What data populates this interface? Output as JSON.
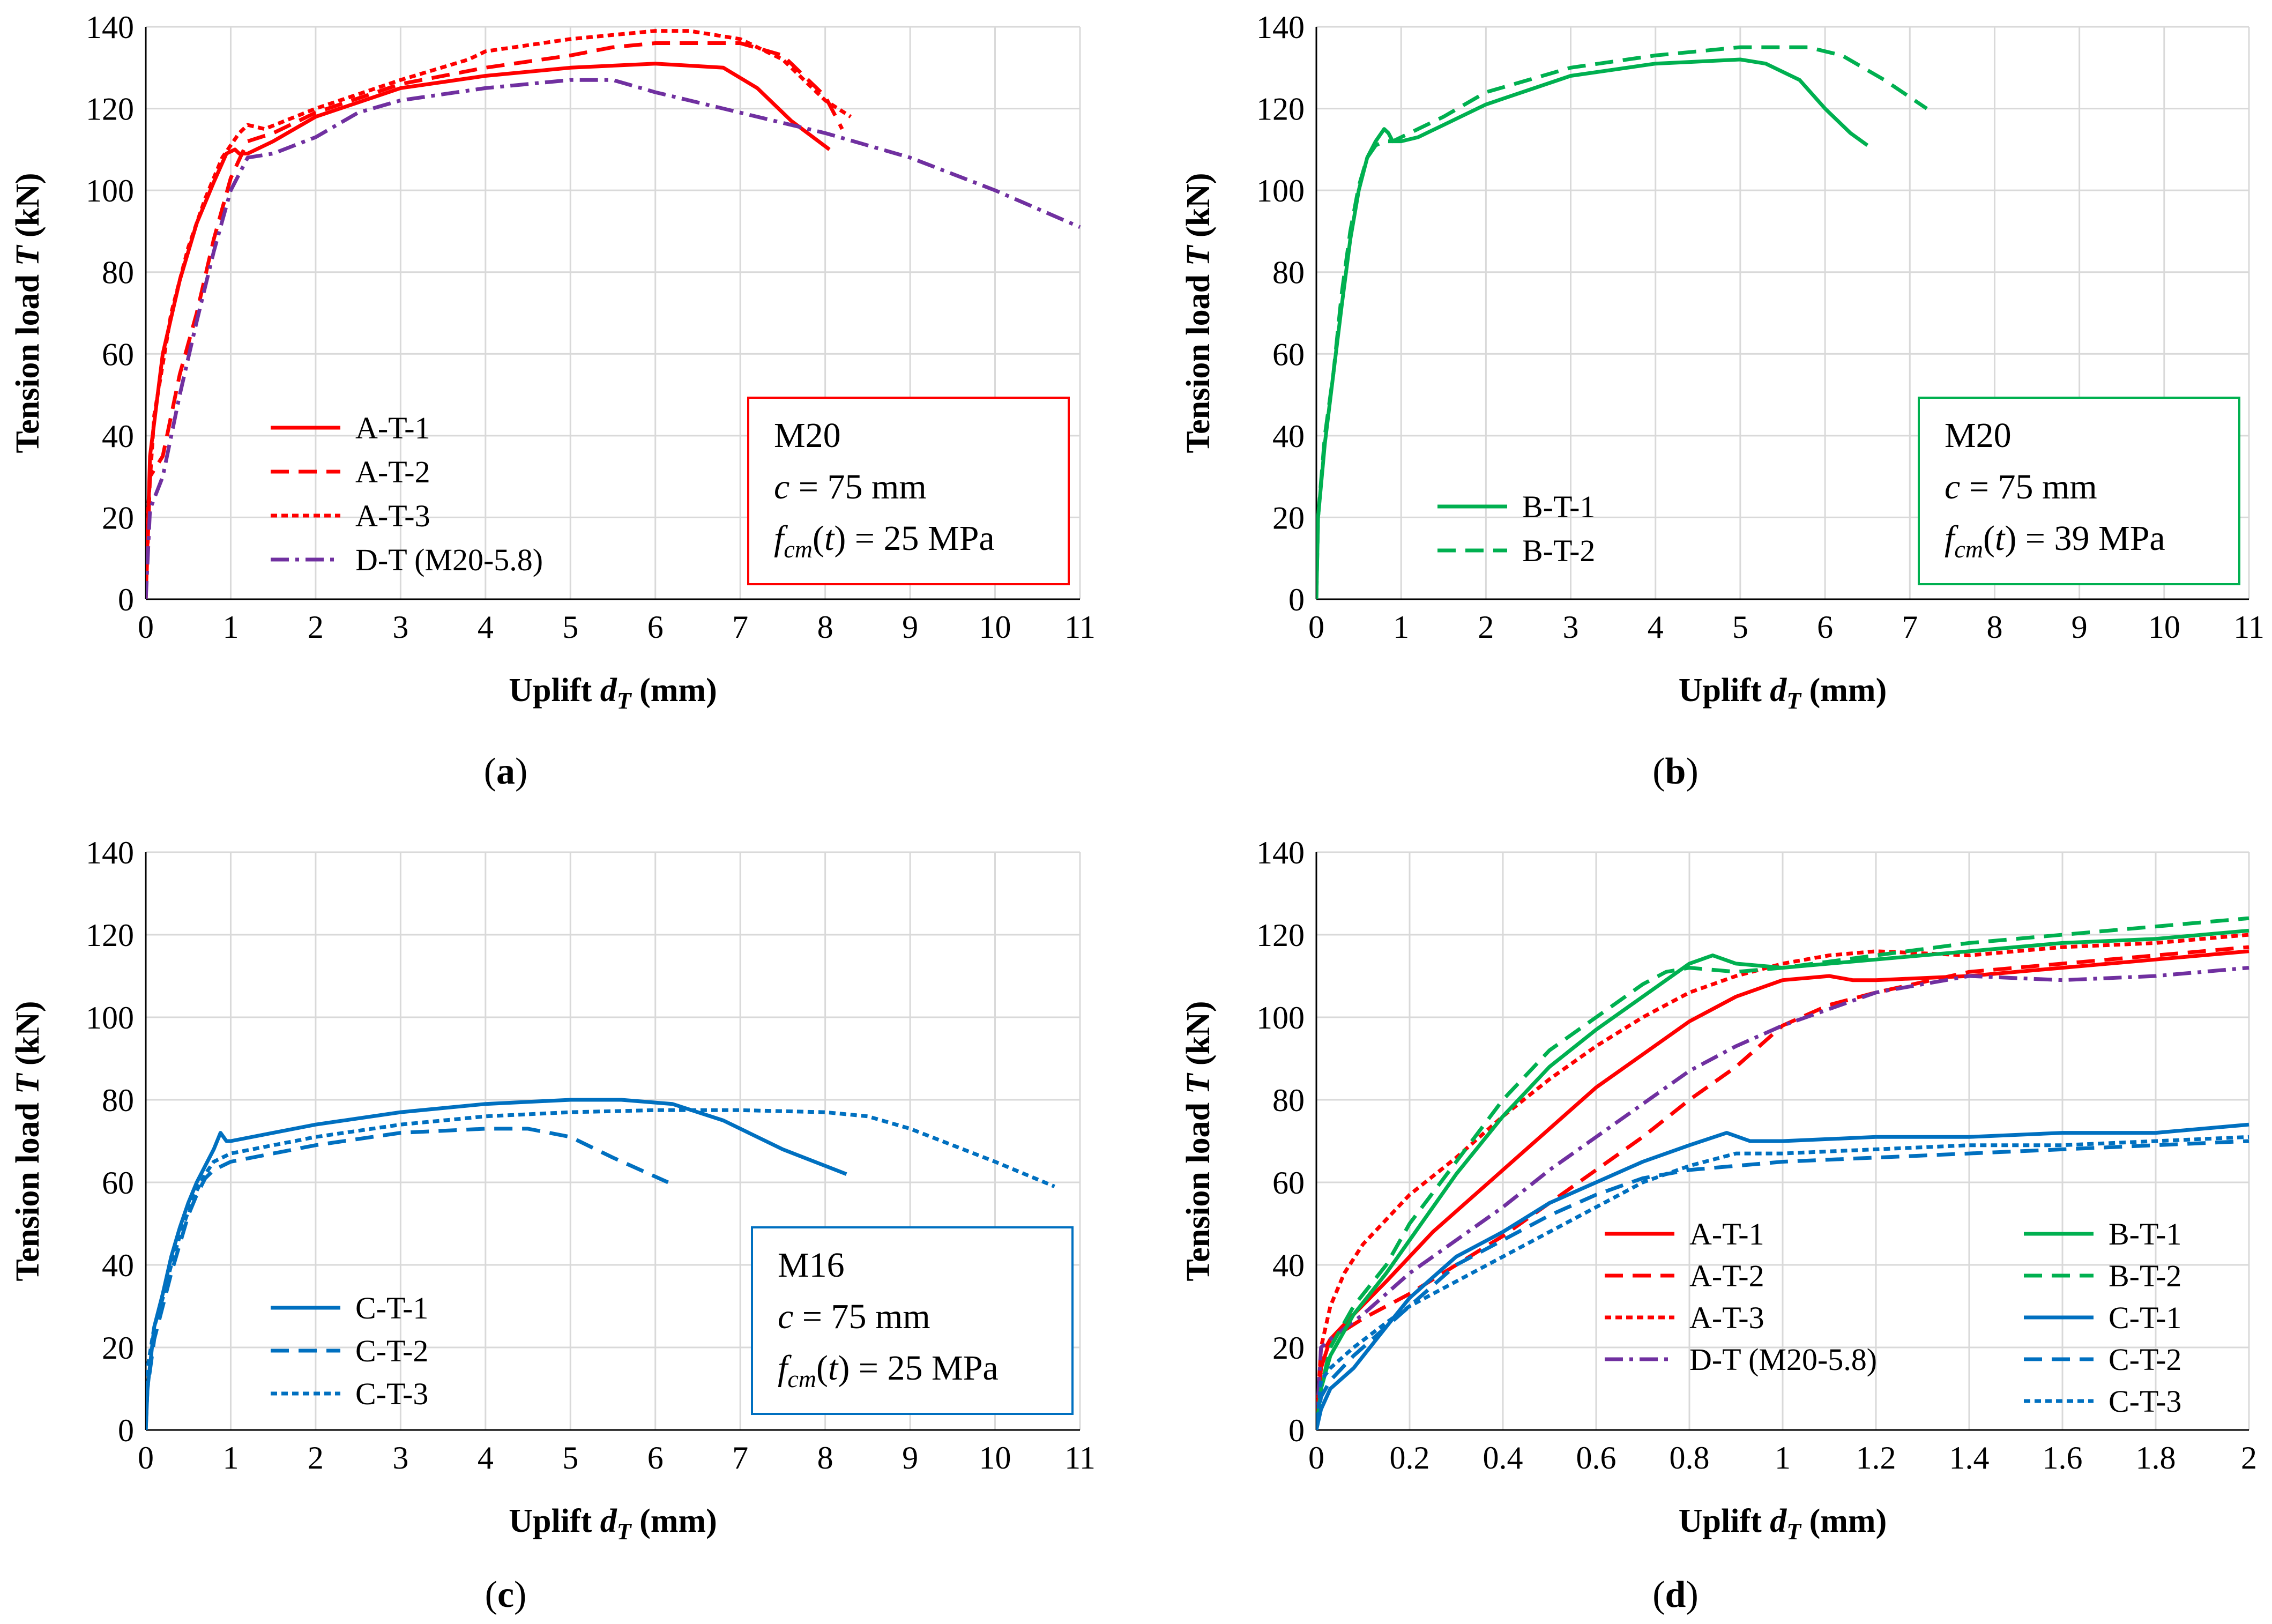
{
  "colors": {
    "red": "#ff0000",
    "purple": "#7030a0",
    "green": "#00b050",
    "blue": "#0070c0",
    "grid": "#d9d9d9",
    "axis": "#000000"
  },
  "chart_data": [
    {
      "id": "a",
      "type": "line",
      "caption": "(a)",
      "caption_letter": "a",
      "xlabel": "Uplift dT (mm)",
      "ylabel": "Tension load T (kN)",
      "xlim": [
        0,
        11
      ],
      "ylim": [
        0,
        140
      ],
      "xticks": [
        "0",
        "1",
        "2",
        "3",
        "4",
        "5",
        "6",
        "7",
        "8",
        "9",
        "10",
        "11"
      ],
      "yticks": [
        "0",
        "20",
        "40",
        "60",
        "80",
        "100",
        "120",
        "140"
      ],
      "info_box": {
        "line1": "M20",
        "line2": "c = 75 mm",
        "line3": "fcm(t) = 25 MPa"
      },
      "series": [
        {
          "name": "A-T-1",
          "color": "red",
          "dash": "solid",
          "x": [
            0,
            0.05,
            0.2,
            0.4,
            0.6,
            0.8,
            0.95,
            1.05,
            1.1,
            1.2,
            1.5,
            2,
            3,
            4,
            5,
            6,
            6.8,
            7.2,
            7.6,
            8.05
          ],
          "y": [
            0,
            35,
            60,
            78,
            92,
            102,
            109,
            110,
            109,
            109,
            112,
            118,
            125,
            128,
            130,
            131,
            130,
            125,
            117,
            110
          ]
        },
        {
          "name": "A-T-2",
          "color": "red",
          "dash": "dash",
          "x": [
            0,
            0.05,
            0.2,
            0.4,
            0.6,
            0.8,
            1.0,
            1.2,
            1.5,
            2,
            3,
            4,
            5,
            5.5,
            6,
            7,
            7.5,
            8,
            8.2
          ],
          "y": [
            0,
            30,
            35,
            55,
            70,
            88,
            103,
            112,
            114,
            119,
            126,
            130,
            133,
            135,
            136,
            136,
            133,
            123,
            115
          ]
        },
        {
          "name": "A-T-3",
          "color": "red",
          "dash": "shortdash",
          "x": [
            0,
            0.02,
            0.1,
            0.3,
            0.5,
            0.7,
            0.9,
            1.1,
            1.2,
            1.4,
            2,
            3,
            3.8,
            4,
            5,
            6,
            6.4,
            7,
            7.5,
            8,
            8.3
          ],
          "y": [
            0,
            20,
            45,
            70,
            86,
            98,
            108,
            114,
            116,
            115,
            120,
            127,
            132,
            134,
            137,
            139,
            139,
            137,
            132,
            122,
            118
          ]
        },
        {
          "name": "D-T (M20-5.8)",
          "color": "purple",
          "dash": "dashdot",
          "x": [
            0,
            0.05,
            0.2,
            0.4,
            0.6,
            0.8,
            1.0,
            1.2,
            1.5,
            2,
            2.5,
            3,
            4,
            5,
            5.5,
            6,
            7,
            8,
            9,
            10,
            11
          ],
          "y": [
            0,
            22,
            30,
            50,
            68,
            85,
            100,
            108,
            109,
            113,
            119,
            122,
            125,
            127,
            127,
            124,
            119,
            114,
            108,
            100,
            91
          ]
        }
      ]
    },
    {
      "id": "b",
      "type": "line",
      "caption": "(b)",
      "caption_letter": "b",
      "xlabel": "Uplift dT (mm)",
      "ylabel": "Tension load T (kN)",
      "xlim": [
        0,
        11
      ],
      "ylim": [
        0,
        140
      ],
      "xticks": [
        "0",
        "1",
        "2",
        "3",
        "4",
        "5",
        "6",
        "7",
        "8",
        "9",
        "10",
        "11"
      ],
      "yticks": [
        "0",
        "20",
        "40",
        "60",
        "80",
        "100",
        "120",
        "140"
      ],
      "info_box": {
        "line1": "M20",
        "line2": "c = 75 mm",
        "line3": "fcm(t) = 39 MPa"
      },
      "series": [
        {
          "name": "B-T-1",
          "color": "green",
          "dash": "solid",
          "x": [
            0,
            0.02,
            0.1,
            0.2,
            0.3,
            0.4,
            0.5,
            0.6,
            0.7,
            0.8,
            0.85,
            0.9,
            1.0,
            1.2,
            1.5,
            2,
            3,
            4,
            5,
            5.3,
            5.7,
            6,
            6.3,
            6.5
          ],
          "y": [
            0,
            20,
            38,
            55,
            72,
            88,
            100,
            108,
            112,
            115,
            114,
            112,
            112,
            113,
            116,
            121,
            128,
            131,
            132,
            131,
            127,
            120,
            114,
            111
          ]
        },
        {
          "name": "B-T-2",
          "color": "green",
          "dash": "dash",
          "x": [
            0,
            0.02,
            0.1,
            0.2,
            0.3,
            0.4,
            0.5,
            0.6,
            0.7,
            0.8,
            0.9,
            1.0,
            1.2,
            1.5,
            2,
            3,
            4,
            5,
            5.8,
            6.2,
            6.7,
            7.2
          ],
          "y": [
            0,
            20,
            40,
            55,
            75,
            90,
            101,
            108,
            111,
            112,
            112,
            113,
            115,
            118,
            124,
            130,
            133,
            135,
            135,
            133,
            127,
            120
          ]
        }
      ]
    },
    {
      "id": "c",
      "type": "line",
      "caption": "(c)",
      "caption_letter": "c",
      "xlabel": "Uplift dT (mm)",
      "ylabel": "Tension load T (kN)",
      "xlim": [
        0,
        11
      ],
      "ylim": [
        0,
        140
      ],
      "xticks": [
        "0",
        "1",
        "2",
        "3",
        "4",
        "5",
        "6",
        "7",
        "8",
        "9",
        "10",
        "11"
      ],
      "yticks": [
        "0",
        "20",
        "40",
        "60",
        "80",
        "100",
        "120",
        "140"
      ],
      "info_box": {
        "line1": "M16",
        "line2": "c = 75 mm",
        "line3": "fcm(t) = 25 MPa"
      },
      "series": [
        {
          "name": "C-T-1",
          "color": "blue",
          "dash": "solid",
          "x": [
            0,
            0.02,
            0.1,
            0.2,
            0.3,
            0.4,
            0.5,
            0.6,
            0.7,
            0.8,
            0.88,
            0.95,
            1.0,
            1.5,
            2,
            3,
            4,
            5,
            5.6,
            6.2,
            6.8,
            7.5,
            8.25
          ],
          "y": [
            0,
            10,
            25,
            33,
            42,
            49,
            55,
            60,
            64,
            68,
            72,
            70,
            70,
            72,
            74,
            77,
            79,
            80,
            80,
            79,
            75,
            68,
            62
          ]
        },
        {
          "name": "C-T-2",
          "color": "blue",
          "dash": "dash",
          "x": [
            0,
            0.02,
            0.1,
            0.2,
            0.3,
            0.4,
            0.5,
            0.6,
            0.7,
            0.8,
            0.9,
            1.0,
            1.5,
            2,
            3,
            4,
            4.5,
            5,
            5.5,
            6.15
          ],
          "y": [
            0,
            10,
            22,
            30,
            38,
            45,
            52,
            57,
            61,
            63,
            64,
            65,
            67,
            69,
            72,
            73,
            73,
            71,
            66,
            60
          ]
        },
        {
          "name": "C-T-3",
          "color": "blue",
          "dash": "shortdash",
          "x": [
            0,
            0.02,
            0.1,
            0.2,
            0.3,
            0.4,
            0.5,
            0.6,
            0.7,
            0.8,
            0.9,
            1.0,
            1.5,
            2,
            3,
            4,
            5,
            6,
            7,
            8,
            8.5,
            9,
            9.5,
            10,
            10.7
          ],
          "y": [
            0,
            15,
            25,
            32,
            40,
            47,
            53,
            58,
            62,
            65,
            66,
            67,
            69,
            71,
            74,
            76,
            77,
            77.5,
            77.5,
            77,
            76,
            73,
            69,
            65,
            59
          ]
        }
      ]
    },
    {
      "id": "d",
      "type": "line",
      "caption": "(d)",
      "caption_letter": "d",
      "xlabel": "Uplift dT (mm)",
      "ylabel": "Tension load T (kN)",
      "xlim": [
        0,
        2
      ],
      "ylim": [
        0,
        140
      ],
      "xticks": [
        "0",
        "0.2",
        "0.4",
        "0.6",
        "0.8",
        "1",
        "1.2",
        "1.4",
        "1.6",
        "1.8",
        "2"
      ],
      "yticks": [
        "0",
        "20",
        "40",
        "60",
        "80",
        "100",
        "120",
        "140"
      ],
      "series": [
        {
          "name": "A-T-1",
          "color": "red",
          "dash": "solid",
          "x": [
            0,
            0.01,
            0.03,
            0.08,
            0.15,
            0.25,
            0.4,
            0.5,
            0.6,
            0.7,
            0.8,
            0.9,
            1.0,
            1.1,
            1.15,
            1.2,
            1.4,
            1.6,
            1.8,
            2.0
          ],
          "y": [
            0,
            15,
            22,
            28,
            36,
            48,
            63,
            73,
            83,
            91,
            99,
            105,
            109,
            110,
            109,
            109,
            110,
            112,
            114,
            116
          ]
        },
        {
          "name": "A-T-2",
          "color": "red",
          "dash": "dash",
          "x": [
            0,
            0.01,
            0.03,
            0.1,
            0.2,
            0.3,
            0.4,
            0.5,
            0.6,
            0.7,
            0.8,
            0.9,
            1.0,
            1.1,
            1.2,
            1.4,
            1.6,
            1.8,
            2.0
          ],
          "y": [
            0,
            18,
            22,
            27,
            33,
            40,
            47,
            55,
            63,
            71,
            80,
            88,
            98,
            103,
            106,
            111,
            113,
            115,
            117
          ]
        },
        {
          "name": "A-T-3",
          "color": "red",
          "dash": "shortdash",
          "x": [
            0,
            0.01,
            0.03,
            0.06,
            0.1,
            0.2,
            0.3,
            0.4,
            0.5,
            0.6,
            0.7,
            0.8,
            0.9,
            1.0,
            1.1,
            1.2,
            1.4,
            1.6,
            1.8,
            2.0
          ],
          "y": [
            0,
            20,
            30,
            38,
            45,
            57,
            66,
            76,
            85,
            93,
            100,
            106,
            110,
            113,
            115,
            116,
            115,
            117,
            118,
            120
          ]
        },
        {
          "name": "D-T (M20-5.8)",
          "color": "purple",
          "dash": "dashdot",
          "x": [
            0,
            0.01,
            0.03,
            0.1,
            0.2,
            0.3,
            0.4,
            0.5,
            0.6,
            0.7,
            0.8,
            0.9,
            1.0,
            1.1,
            1.2,
            1.4,
            1.6,
            1.8,
            2.0
          ],
          "y": [
            0,
            20,
            22,
            28,
            38,
            46,
            54,
            63,
            71,
            79,
            87,
            93,
            98,
            102,
            106,
            110,
            109,
            110,
            112
          ]
        },
        {
          "name": "B-T-1",
          "color": "green",
          "dash": "solid",
          "x": [
            0,
            0.01,
            0.03,
            0.08,
            0.15,
            0.2,
            0.3,
            0.4,
            0.5,
            0.6,
            0.7,
            0.8,
            0.85,
            0.9,
            1.0,
            1.2,
            1.4,
            1.6,
            1.8,
            2.0
          ],
          "y": [
            0,
            10,
            18,
            28,
            38,
            46,
            62,
            76,
            88,
            97,
            105,
            113,
            115,
            113,
            112,
            114,
            116,
            118,
            119,
            121
          ]
        },
        {
          "name": "B-T-2",
          "color": "green",
          "dash": "dash",
          "x": [
            0,
            0.01,
            0.03,
            0.08,
            0.15,
            0.2,
            0.3,
            0.4,
            0.5,
            0.6,
            0.7,
            0.75,
            0.8,
            0.9,
            1.0,
            1.2,
            1.4,
            1.6,
            1.8,
            2.0
          ],
          "y": [
            0,
            10,
            20,
            30,
            40,
            50,
            65,
            80,
            92,
            100,
            108,
            111,
            112,
            111,
            112,
            115,
            118,
            120,
            122,
            124
          ]
        },
        {
          "name": "C-T-1",
          "color": "blue",
          "dash": "solid",
          "x": [
            0,
            0.01,
            0.03,
            0.08,
            0.15,
            0.2,
            0.3,
            0.4,
            0.5,
            0.6,
            0.7,
            0.8,
            0.88,
            0.93,
            1.0,
            1.2,
            1.4,
            1.6,
            1.8,
            2.0
          ],
          "y": [
            0,
            5,
            10,
            15,
            25,
            32,
            42,
            48,
            55,
            60,
            65,
            69,
            72,
            70,
            70,
            71,
            71,
            72,
            72,
            74
          ]
        },
        {
          "name": "C-T-2",
          "color": "blue",
          "dash": "dash",
          "x": [
            0,
            0.01,
            0.03,
            0.08,
            0.15,
            0.2,
            0.3,
            0.4,
            0.5,
            0.6,
            0.7,
            0.8,
            0.9,
            1.0,
            1.2,
            1.4,
            1.6,
            1.8,
            2.0
          ],
          "y": [
            0,
            8,
            12,
            18,
            25,
            30,
            40,
            46,
            52,
            57,
            61,
            63,
            64,
            65,
            66,
            67,
            68,
            69,
            70
          ]
        },
        {
          "name": "C-T-3",
          "color": "blue",
          "dash": "shortdash",
          "x": [
            0,
            0.01,
            0.03,
            0.08,
            0.15,
            0.2,
            0.3,
            0.4,
            0.5,
            0.6,
            0.7,
            0.8,
            0.9,
            1.0,
            1.2,
            1.4,
            1.6,
            1.8,
            2.0
          ],
          "y": [
            0,
            12,
            15,
            20,
            26,
            30,
            36,
            42,
            48,
            54,
            60,
            64,
            67,
            67,
            68,
            69,
            69,
            70,
            71
          ]
        }
      ]
    }
  ]
}
